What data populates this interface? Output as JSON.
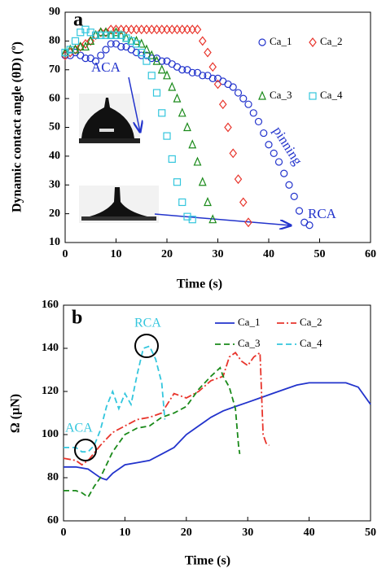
{
  "chart_data": [
    {
      "type": "scatter",
      "xlabel": "Time (s)",
      "ylabel": "Dynamic contact angle (θD) (º)",
      "xlim": [
        0,
        60
      ],
      "xticks": [
        0,
        10,
        20,
        30,
        40,
        50,
        60
      ],
      "ylim": [
        10,
        90
      ],
      "yticks": [
        10,
        20,
        30,
        40,
        50,
        60,
        70,
        80,
        90
      ],
      "annotations": [
        "a",
        "ACA",
        "pinning",
        "RCA"
      ],
      "series": [
        {
          "name": "Ca_1",
          "color": "#2233cc",
          "marker": "circle",
          "x": [
            0,
            1,
            2,
            3,
            4,
            5,
            6,
            7,
            8,
            9,
            10,
            11,
            12,
            13,
            14,
            15,
            16,
            17,
            18,
            19,
            20,
            21,
            22,
            23,
            24,
            25,
            26,
            27,
            28,
            29,
            30,
            31,
            32,
            33,
            34,
            35,
            36,
            37,
            38,
            39,
            40,
            41,
            42,
            43,
            44,
            45,
            46,
            47,
            48
          ],
          "values": [
            75,
            75,
            76,
            75,
            74,
            74,
            73,
            75,
            77,
            79,
            79,
            78,
            78,
            77,
            76,
            75,
            75,
            74,
            74,
            73,
            73,
            72,
            71,
            70,
            70,
            69,
            69,
            68,
            68,
            67,
            67,
            66,
            65,
            64,
            62,
            60,
            58,
            55,
            52,
            48,
            44,
            41,
            38,
            34,
            30,
            26,
            21,
            17,
            16
          ]
        },
        {
          "name": "Ca_2",
          "color": "#e8352c",
          "marker": "diamond",
          "x": [
            0,
            1,
            2,
            3,
            4,
            5,
            6,
            7,
            8,
            9,
            10,
            11,
            12,
            13,
            14,
            15,
            16,
            17,
            18,
            19,
            20,
            21,
            22,
            23,
            24,
            25,
            26,
            27,
            28,
            29,
            30,
            31,
            32,
            33,
            34,
            35,
            36
          ],
          "values": [
            75,
            76,
            77,
            78,
            79,
            80,
            82,
            83,
            83,
            84,
            84,
            84,
            84,
            84,
            84,
            84,
            84,
            84,
            84,
            84,
            84,
            84,
            84,
            84,
            84,
            84,
            84,
            80,
            76,
            71,
            65,
            58,
            50,
            41,
            32,
            24,
            17
          ]
        },
        {
          "name": "Ca_3",
          "color": "#1a8a1a",
          "marker": "triangle",
          "x": [
            0,
            1,
            2,
            3,
            4,
            5,
            6,
            7,
            8,
            9,
            10,
            11,
            12,
            13,
            14,
            15,
            16,
            17,
            18,
            19,
            20,
            21,
            22,
            23,
            24,
            25,
            26,
            27,
            28,
            29
          ],
          "values": [
            76,
            77,
            77,
            78,
            78,
            80,
            82,
            83,
            83,
            82,
            83,
            82,
            81,
            80,
            80,
            79,
            77,
            75,
            73,
            70,
            68,
            64,
            60,
            55,
            50,
            44,
            38,
            31,
            24,
            18
          ]
        },
        {
          "name": "Ca_4",
          "color": "#33c6dd",
          "marker": "square",
          "x": [
            0,
            1,
            2,
            3,
            4,
            5,
            6,
            7,
            8,
            9,
            10,
            11,
            12,
            13,
            14,
            15,
            16,
            17,
            18,
            19,
            20,
            21,
            22,
            23,
            24,
            25
          ],
          "values": [
            76,
            77,
            80,
            83,
            84,
            83,
            82,
            82,
            82,
            82,
            82,
            82,
            81,
            80,
            79,
            76,
            73,
            68,
            62,
            55,
            47,
            39,
            31,
            24,
            19,
            18
          ]
        }
      ]
    },
    {
      "type": "line",
      "xlabel": "Time (s)",
      "ylabel": "Ω (µN)",
      "xlim": [
        0,
        50
      ],
      "xticks": [
        0,
        10,
        20,
        30,
        40,
        50
      ],
      "ylim": [
        60,
        160
      ],
      "yticks": [
        60,
        80,
        100,
        120,
        140,
        160
      ],
      "annotations": [
        "b",
        "RCA",
        "ACA"
      ],
      "series": [
        {
          "name": "Ca_1",
          "color": "#2233cc",
          "dash": "solid",
          "x": [
            0,
            2,
            4,
            5,
            6,
            7,
            8,
            10,
            12,
            14,
            16,
            18,
            20,
            22,
            24,
            26,
            28,
            30,
            32,
            34,
            36,
            38,
            40,
            42,
            44,
            46,
            48,
            50
          ],
          "values": [
            85,
            85,
            84,
            82,
            80,
            79,
            82,
            86,
            87,
            88,
            91,
            94,
            100,
            104,
            108,
            111,
            113,
            115,
            117,
            119,
            121,
            123,
            124,
            124,
            124,
            124,
            122,
            114
          ]
        },
        {
          "name": "Ca_2",
          "color": "#e8352c",
          "dash": "dashdot",
          "x": [
            0,
            2,
            3,
            4,
            6,
            8,
            10,
            12,
            14,
            16,
            18,
            20,
            22,
            24,
            26,
            27,
            28,
            29,
            30,
            31,
            32,
            32.5,
            33,
            33.5
          ],
          "values": [
            89,
            88,
            86,
            88,
            95,
            101,
            104,
            107,
            108,
            110,
            119,
            117,
            120,
            125,
            127,
            136,
            138,
            134,
            132,
            136,
            138,
            100,
            96,
            95
          ]
        },
        {
          "name": "Ca_3",
          "color": "#1a8a1a",
          "dash": "dashed",
          "x": [
            0,
            2,
            3,
            4,
            5,
            6,
            8,
            10,
            12,
            14,
            16,
            18,
            20,
            22,
            24,
            25.5,
            26,
            27,
            28,
            28.5,
            28.7
          ],
          "values": [
            74,
            74,
            73,
            71,
            76,
            80,
            92,
            100,
            103,
            104,
            108,
            110,
            113,
            121,
            127,
            131,
            127,
            122,
            112,
            95,
            91
          ]
        },
        {
          "name": "Ca_4",
          "color": "#33c6dd",
          "dash": "dashed",
          "x": [
            0,
            2,
            3,
            4,
            5,
            6,
            7,
            8,
            9,
            10,
            11,
            12,
            13,
            14,
            15,
            16,
            16.5
          ],
          "values": [
            94,
            94,
            92,
            92,
            95,
            102,
            113,
            120,
            112,
            119,
            114,
            128,
            140,
            141,
            135,
            124,
            107
          ]
        }
      ]
    }
  ]
}
